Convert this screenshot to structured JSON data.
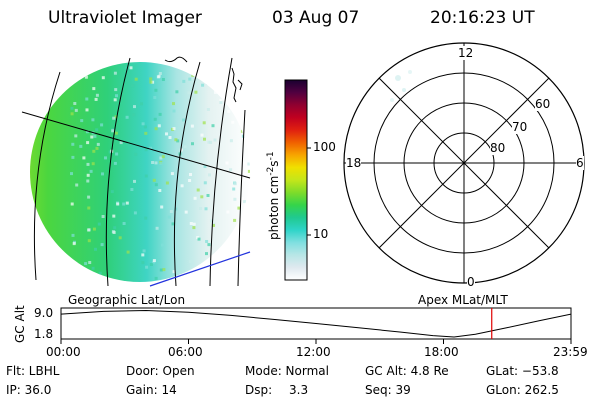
{
  "header": {
    "instrument": "Ultraviolet Imager",
    "date": "03 Aug 07",
    "time": "20:16:23 UT"
  },
  "colorbar": {
    "unit_label": "photon cm",
    "unit_sup1": "-2",
    "unit_mid": "s",
    "unit_sup2": "-1",
    "ticks": [
      "100",
      "10"
    ],
    "gradient": [
      "#ffffff",
      "#dfe9ef",
      "#b8e6e6",
      "#7fdfe0",
      "#2fd4c8",
      "#20c98f",
      "#35d44a",
      "#7fdc2a",
      "#c4e61a",
      "#f0e000",
      "#f7a500",
      "#f06000",
      "#e02010",
      "#c00020",
      "#900030",
      "#500040",
      "#1a0030"
    ]
  },
  "geographic_label": "Geographic Lat/Lon",
  "apex_label": "Apex MLat/MLT",
  "polar": {
    "mlt_labels": {
      "top": "12",
      "left": "18",
      "right": "6",
      "bottom": "0"
    },
    "lat_labels": [
      "60",
      "70",
      "80"
    ]
  },
  "timeline": {
    "ylabel": "GC Alt",
    "ymax": "9.0",
    "ymin": "1.8",
    "xticks": [
      "00:00",
      "06:00",
      "12:00",
      "18:00",
      "23:59"
    ],
    "current_time_marker_hours": 20.27,
    "marker_color": "#e00000"
  },
  "info": {
    "flt": "Flt: LBHL",
    "ip": "IP: 36.0",
    "door": "Door: Open",
    "gain": "Gain: 14",
    "mode": "Mode: Normal",
    "dsp_label": "Dsp:",
    "dsp_value": "3.3",
    "gcalt": "GC Alt: 4.8 Re",
    "seq": "Seq: 39",
    "glat": "GLat: −53.8",
    "glon": "GLon: 262.5"
  }
}
